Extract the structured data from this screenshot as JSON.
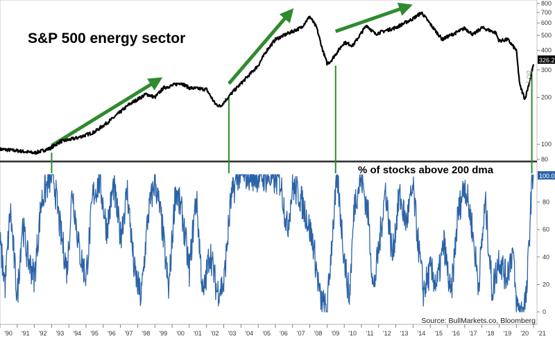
{
  "chart_data": [
    {
      "type": "line",
      "title": "S&P 500 energy sector",
      "yscale": "log",
      "yscale_label": "Log",
      "ylim": [
        80,
        800
      ],
      "ytick_labels": [
        "800",
        "700",
        "600",
        "500",
        "400",
        "300",
        "200",
        "100",
        "80"
      ],
      "yticks": [
        800,
        700,
        600,
        500,
        400,
        300,
        200,
        100,
        80
      ],
      "last_value_label": "326.2",
      "last_value": 326.2,
      "line_color": "#000000",
      "x": [
        1990.0,
        1991.0,
        1992.0,
        1992.9,
        1993.5,
        1994.5,
        1995.5,
        1996.5,
        1997.5,
        1998.5,
        1999.0,
        1999.5,
        2000.0,
        2000.5,
        2001.0,
        2002.0,
        2002.5,
        2002.8,
        2003.5,
        2004.0,
        2005.0,
        2005.5,
        2006.0,
        2006.5,
        2007.0,
        2007.5,
        2008.0,
        2008.4,
        2008.7,
        2009.0,
        2009.2,
        2010.0,
        2010.5,
        2011.3,
        2011.8,
        2012.5,
        2013.0,
        2014.0,
        2014.5,
        2015.0,
        2015.7,
        2016.0,
        2016.5,
        2017.0,
        2017.5,
        2018.0,
        2018.8,
        2019.0,
        2019.5,
        2020.0,
        2020.2,
        2020.5,
        2020.8,
        2021.0
      ],
      "values": [
        93,
        91,
        88,
        94,
        104,
        110,
        120,
        145,
        180,
        210,
        200,
        230,
        238,
        248,
        230,
        225,
        182,
        175,
        215,
        245,
        320,
        400,
        470,
        500,
        530,
        560,
        660,
        560,
        420,
        330,
        340,
        450,
        430,
        580,
        510,
        540,
        560,
        640,
        700,
        590,
        470,
        490,
        520,
        555,
        505,
        560,
        520,
        460,
        470,
        400,
        240,
        195,
        260,
        326
      ],
      "x_ticks": [
        "'90",
        "'91",
        "'92",
        "'93",
        "'94",
        "'95",
        "'96",
        "'97",
        "'98",
        "'99",
        "'00",
        "'01",
        "'02",
        "'03",
        "'04",
        "'05",
        "'06",
        "'07",
        "'08",
        "'09",
        "'10",
        "'11",
        "'12",
        "'13",
        "'14",
        "'15",
        "'16",
        "'17",
        "'18",
        "'19",
        "'20",
        "'21"
      ],
      "annotations": [
        {
          "type": "arrow",
          "from": [
            1993.0,
            98
          ],
          "to": [
            1999.1,
            255
          ],
          "color": "#2e8b2e"
        },
        {
          "type": "arrow",
          "from": [
            2003.3,
            245
          ],
          "to": [
            2006.8,
            690
          ],
          "color": "#2e8b2e"
        },
        {
          "type": "arrow",
          "from": [
            2009.5,
            530
          ],
          "to": [
            2013.6,
            760
          ],
          "color": "#2e8b2e"
        }
      ]
    },
    {
      "type": "line",
      "title": "% of stocks above 200 dma",
      "ylim": [
        0,
        100
      ],
      "ytick_labels": [
        "80",
        "60",
        "40",
        "20",
        "0"
      ],
      "yticks": [
        80,
        60,
        40,
        20,
        0
      ],
      "last_value_label": "100.0",
      "last_value": 100,
      "line_color": "#2b63a8",
      "x": [
        1990.0,
        1990.3,
        1990.6,
        1991.0,
        1991.3,
        1991.6,
        1992.0,
        1992.4,
        1992.8,
        1993.1,
        1993.5,
        1993.9,
        1994.2,
        1994.6,
        1995.0,
        1995.4,
        1995.8,
        1996.2,
        1996.6,
        1997.0,
        1997.4,
        1997.8,
        1998.2,
        1998.6,
        1999.0,
        1999.4,
        1999.8,
        2000.2,
        2000.6,
        2001.0,
        2001.4,
        2001.8,
        2002.2,
        2002.6,
        2003.0,
        2003.4,
        2003.8,
        2004.5,
        2005.5,
        2006.3,
        2006.7,
        2007.0,
        2007.4,
        2007.8,
        2008.2,
        2008.6,
        2009.0,
        2009.3,
        2009.6,
        2010.0,
        2010.3,
        2010.6,
        2011.0,
        2011.4,
        2011.7,
        2012.0,
        2012.4,
        2012.8,
        2013.2,
        2013.6,
        2014.0,
        2014.3,
        2014.6,
        2015.0,
        2015.4,
        2015.8,
        2016.2,
        2016.6,
        2017.0,
        2017.4,
        2017.8,
        2018.2,
        2018.6,
        2019.0,
        2019.4,
        2019.8,
        2020.0,
        2020.3,
        2020.6,
        2020.9,
        2021.0
      ],
      "values": [
        50,
        20,
        75,
        10,
        65,
        40,
        25,
        80,
        95,
        100,
        60,
        30,
        90,
        45,
        25,
        85,
        95,
        60,
        92,
        55,
        88,
        30,
        10,
        70,
        96,
        65,
        15,
        90,
        70,
        30,
        85,
        10,
        45,
        15,
        20,
        80,
        100,
        100,
        98,
        95,
        60,
        92,
        85,
        70,
        50,
        10,
        0,
        55,
        98,
        40,
        10,
        80,
        98,
        70,
        15,
        45,
        90,
        40,
        85,
        65,
        90,
        50,
        15,
        30,
        20,
        50,
        10,
        70,
        94,
        65,
        20,
        80,
        15,
        40,
        25,
        45,
        5,
        0,
        12,
        95,
        100
      ],
      "x_ticks": [
        "'90",
        "'91",
        "'92",
        "'93",
        "'94",
        "'95",
        "'96",
        "'97",
        "'98",
        "'99",
        "'00",
        "'01",
        "'02",
        "'03",
        "'04",
        "'05",
        "'06",
        "'07",
        "'08",
        "'09",
        "'10",
        "'11",
        "'12",
        "'13",
        "'14",
        "'15",
        "'16",
        "'17",
        "'18",
        "'19",
        "'20",
        "'21"
      ],
      "source": "Source: BullMarkets.co, Bloomberg"
    }
  ],
  "connectors": {
    "color": "#2e8b2e",
    "x": [
      1993.0,
      2003.3,
      2009.5,
      2020.9
    ]
  }
}
